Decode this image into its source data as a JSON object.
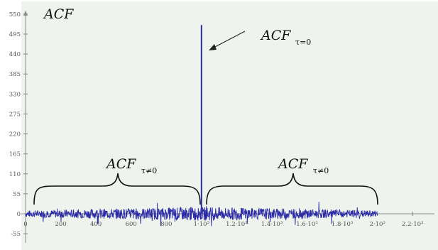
{
  "chart_data": {
    "type": "line",
    "title": "",
    "ylabel": "ACF",
    "xlabel": "",
    "xlim": [
      0,
      2300
    ],
    "ylim": [
      -55,
      560
    ],
    "grid": false,
    "colors": {
      "plot_bg": "#eef3ee",
      "series": "#2b2ba8",
      "axis": "#888888"
    },
    "y_ticks": [
      "-55",
      "0",
      "55",
      "110",
      "165",
      "220",
      "275",
      "330",
      "385",
      "440",
      "495",
      "550"
    ],
    "x_ticks": [
      "0",
      "200",
      "400",
      "600",
      "800",
      "1·10³",
      "1.2·10³",
      "1.4·10³",
      "1.6·10³",
      "1.8·10³",
      "2·10³",
      "2.2·10³"
    ],
    "series": [
      {
        "peak_x": 1000,
        "peak_value": 520,
        "x_range": [
          0,
          2000
        ],
        "noise_amplitude": 35
      }
    ],
    "annotations": {
      "peak": {
        "main": "ACF",
        "sub": "τ=0"
      },
      "left": {
        "main": "ACF",
        "sub": "τ≠0"
      },
      "right": {
        "main": "ACF",
        "sub": "τ≠0"
      }
    }
  }
}
